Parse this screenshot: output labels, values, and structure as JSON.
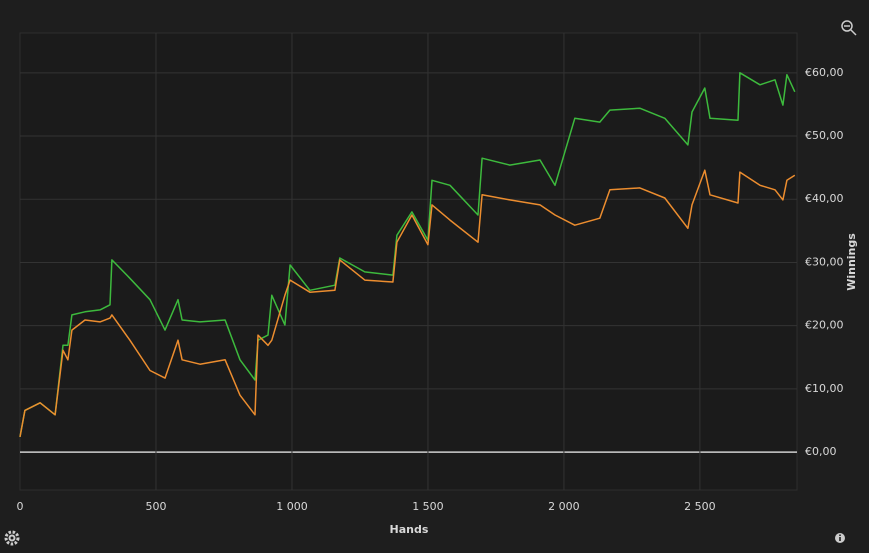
{
  "chart_data": {
    "type": "line",
    "x_label": "Hands",
    "y_label": "Winnings",
    "x": [
      0,
      18,
      74,
      129,
      158,
      176,
      191,
      239,
      294,
      331,
      338,
      404,
      478,
      533,
      581,
      596,
      662,
      754,
      809,
      864,
      875,
      912,
      926,
      974,
      993,
      1066,
      1158,
      1176,
      1268,
      1371,
      1386,
      1441,
      1500,
      1515,
      1581,
      1684,
      1699,
      1801,
      1912,
      1967,
      2040,
      2132,
      2169,
      2279,
      2371,
      2456,
      2471,
      2518,
      2537,
      2640,
      2647,
      2721,
      2776,
      2805,
      2820,
      2849
    ],
    "series": [
      {
        "color": "#3dba3d",
        "values": [
          2.4,
          6.6,
          7.8,
          5.9,
          16.9,
          16.9,
          21.7,
          22.2,
          22.5,
          23.3,
          30.4,
          27.5,
          24.1,
          19.3,
          24.1,
          20.9,
          20.6,
          20.9,
          14.6,
          11.4,
          17.7,
          18.5,
          24.8,
          20.1,
          29.6,
          25.6,
          26.4,
          30.7,
          28.5,
          28.0,
          34.3,
          38.0,
          33.5,
          43.0,
          42.2,
          37.5,
          46.5,
          45.4,
          46.2,
          42.2,
          52.8,
          52.2,
          54.1,
          54.4,
          52.8,
          48.6,
          53.8,
          57.6,
          52.8,
          52.5,
          60.0,
          58.1,
          58.9,
          54.9,
          59.7,
          57.0
        ]
      },
      {
        "color": "#ec8d2f",
        "values": [
          2.4,
          6.6,
          7.8,
          5.9,
          16.1,
          14.6,
          19.3,
          20.9,
          20.6,
          21.2,
          21.7,
          17.7,
          12.9,
          11.7,
          17.7,
          14.6,
          13.9,
          14.6,
          9.0,
          5.9,
          18.5,
          16.9,
          17.7,
          24.8,
          27.2,
          25.3,
          25.6,
          30.4,
          27.2,
          26.9,
          33.2,
          37.5,
          32.8,
          39.1,
          36.7,
          33.2,
          40.7,
          39.9,
          39.1,
          37.5,
          35.9,
          37.0,
          41.5,
          41.8,
          40.2,
          35.4,
          39.1,
          44.6,
          40.7,
          39.4,
          44.3,
          42.2,
          41.5,
          39.9,
          43.0,
          43.8
        ]
      }
    ],
    "xlim": [
      0,
      2857
    ],
    "ylim": [
      -6,
      66.3
    ],
    "xticks": [
      0,
      500,
      {
        "value": 1000,
        "label": "1 000"
      },
      {
        "value": 1500,
        "label": "1 500"
      },
      {
        "value": 2000,
        "label": "2 000"
      },
      {
        "value": 2500,
        "label": "2 500"
      }
    ],
    "yticks": [
      {
        "value": 0,
        "label": "€0,00"
      },
      {
        "value": 10,
        "label": "€10,00"
      },
      {
        "value": 20,
        "label": "€20,00"
      },
      {
        "value": 30,
        "label": "€30,00"
      },
      {
        "value": 40,
        "label": "€40,00"
      },
      {
        "value": 50,
        "label": "€50,00"
      },
      {
        "value": 60,
        "label": "€60,00"
      }
    ],
    "grid": true
  }
}
